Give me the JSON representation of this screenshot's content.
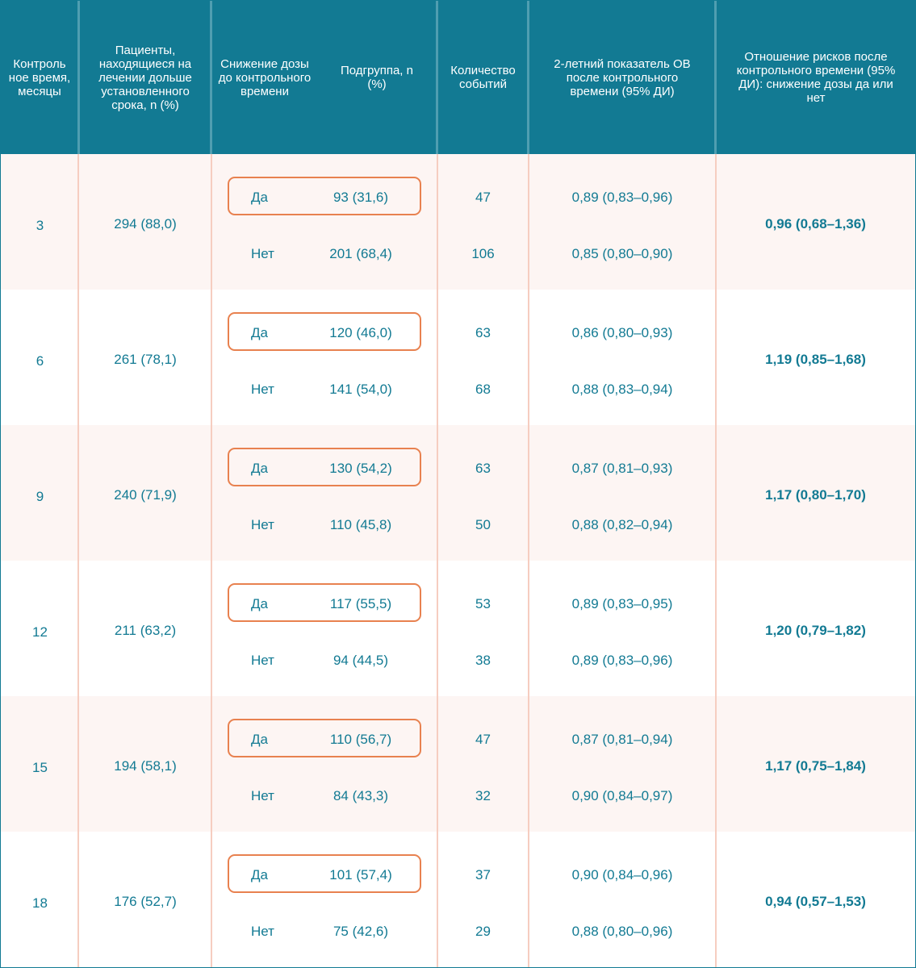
{
  "headers": {
    "col1": "Контроль ное время, месяцы",
    "col2": "Пациенты, находящиеся на лечении дольше установленного срока, n (%)",
    "col3": "Снижение дозы до контрольного времени",
    "col4": "Подгруппа, n (%)",
    "col5": "Количество событий",
    "col6": "2-летний показатель ОВ после контрольного времени (95% ДИ)",
    "col7": "Отношение рисков после контрольного времени (95% ДИ): снижение дозы да или нет"
  },
  "rows": [
    {
      "time": "3",
      "patients": "294 (88,0)",
      "yes_label": "Да",
      "yes_subgroup": "93 (31,6)",
      "yes_events": "47",
      "yes_os": "0,89 (0,83–0,96)",
      "no_label": "Нет",
      "no_subgroup": "201 (68,4)",
      "no_events": "106",
      "no_os": "0,85 (0,80–0,90)",
      "hr": "0,96 (0,68–1,36)"
    },
    {
      "time": "6",
      "patients": "261 (78,1)",
      "yes_label": "Да",
      "yes_subgroup": "120 (46,0)",
      "yes_events": "63",
      "yes_os": "0,86 (0,80–0,93)",
      "no_label": "Нет",
      "no_subgroup": "141 (54,0)",
      "no_events": "68",
      "no_os": "0,88 (0,83–0,94)",
      "hr": "1,19 (0,85–1,68)"
    },
    {
      "time": "9",
      "patients": "240 (71,9)",
      "yes_label": "Да",
      "yes_subgroup": "130 (54,2)",
      "yes_events": "63",
      "yes_os": "0,87 (0,81–0,93)",
      "no_label": "Нет",
      "no_subgroup": "110 (45,8)",
      "no_events": "50",
      "no_os": "0,88 (0,82–0,94)",
      "hr": "1,17 (0,80–1,70)"
    },
    {
      "time": "12",
      "patients": "211 (63,2)",
      "yes_label": "Да",
      "yes_subgroup": "117 (55,5)",
      "yes_events": "53",
      "yes_os": "0,89 (0,83–0,95)",
      "no_label": "Нет",
      "no_subgroup": "94 (44,5)",
      "no_events": "38",
      "no_os": "0,89 (0,83–0,96)",
      "hr": "1,20 (0,79–1,82)"
    },
    {
      "time": "15",
      "patients": "194 (58,1)",
      "yes_label": "Да",
      "yes_subgroup": "110 (56,7)",
      "yes_events": "47",
      "yes_os": "0,87 (0,81–0,94)",
      "no_label": "Нет",
      "no_subgroup": "84 (43,3)",
      "no_events": "32",
      "no_os": "0,90 (0,84–0,97)",
      "hr": "1,17 (0,75–1,84)"
    },
    {
      "time": "18",
      "patients": "176 (52,7)",
      "yes_label": "Да",
      "yes_subgroup": "101 (57,4)",
      "yes_events": "37",
      "yes_os": "0,90 (0,84–0,96)",
      "no_label": "Нет",
      "no_subgroup": "75 (42,6)",
      "no_events": "29",
      "no_os": "0,88 (0,80–0,96)",
      "hr": "0,94 (0,57–1,53)"
    }
  ],
  "colors": {
    "header_bg": "#127a93",
    "text": "#127a93",
    "row_tint": "#fdf5f3",
    "divider": "#f6cdc0",
    "highlight_border": "#e8814f"
  }
}
